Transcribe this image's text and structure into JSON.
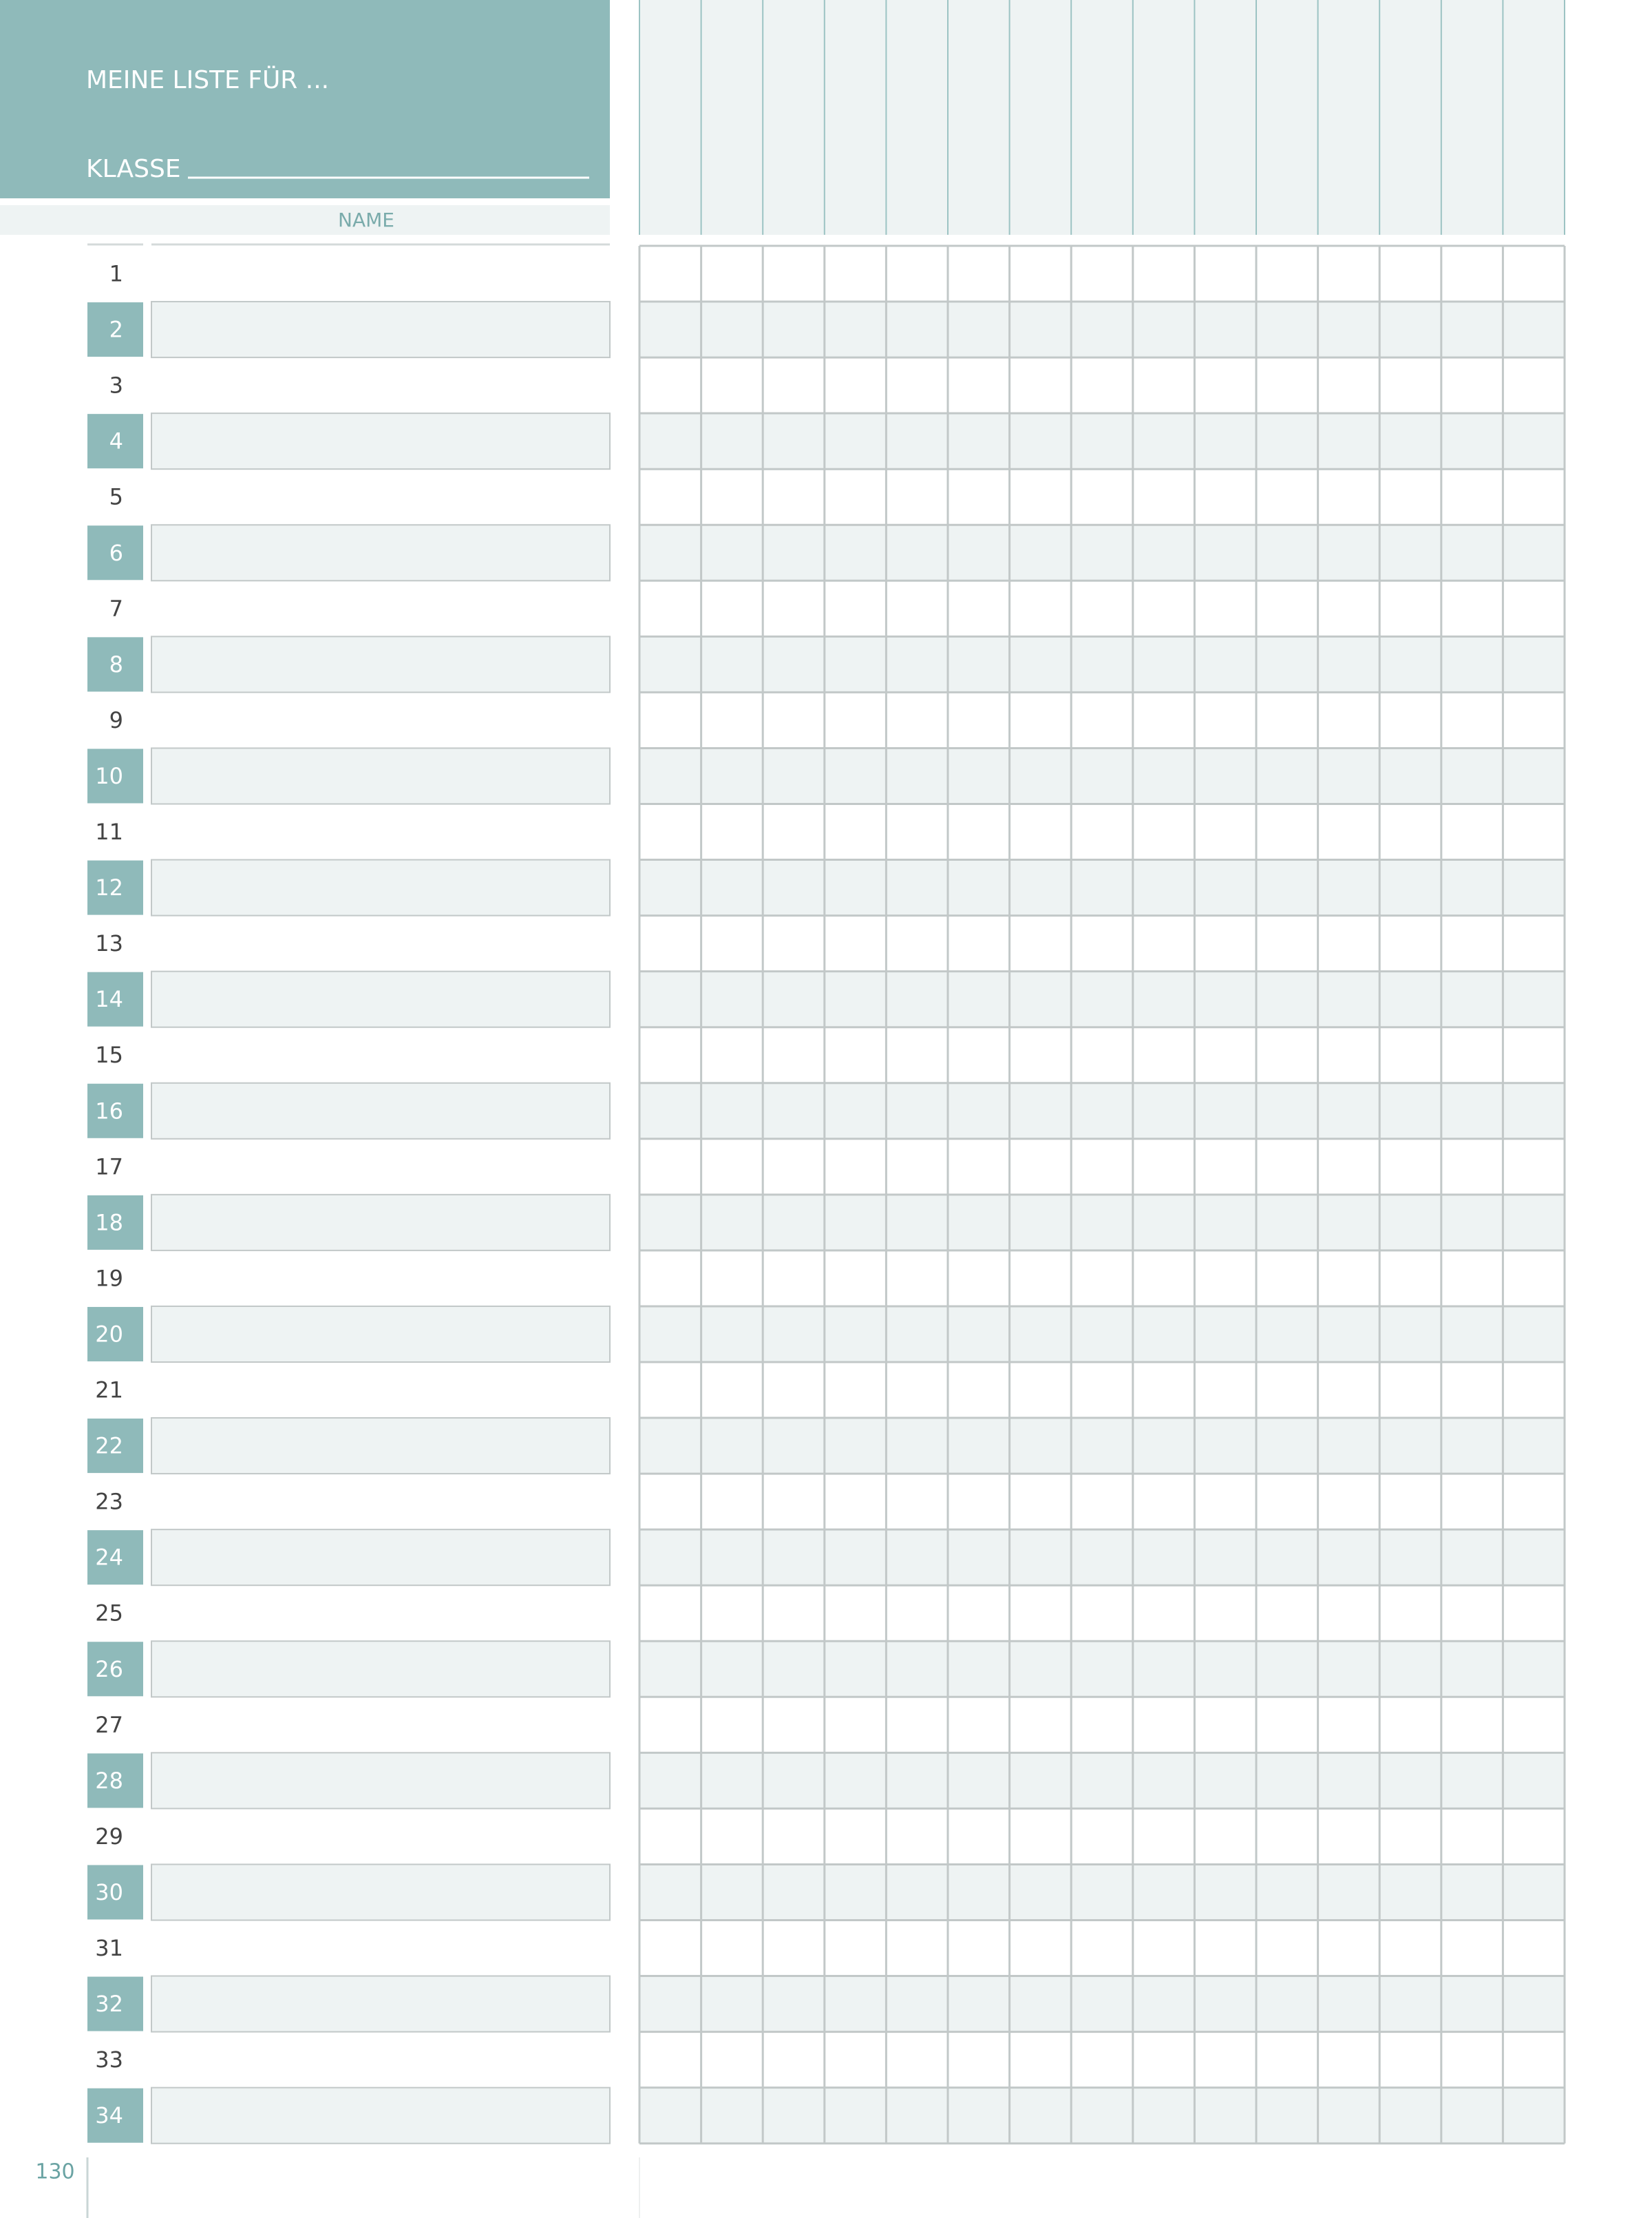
{
  "header": {
    "title": "MEINE LISTE FÜR ...",
    "class_label": "KLASSE"
  },
  "table": {
    "name_header": "NAME",
    "rows": [
      1,
      2,
      3,
      4,
      5,
      6,
      7,
      8,
      9,
      10,
      11,
      12,
      13,
      14,
      15,
      16,
      17,
      18,
      19,
      20,
      21,
      22,
      23,
      24,
      25,
      26,
      27,
      28,
      29,
      30,
      31,
      32,
      33,
      34
    ]
  },
  "page_number": "130"
}
